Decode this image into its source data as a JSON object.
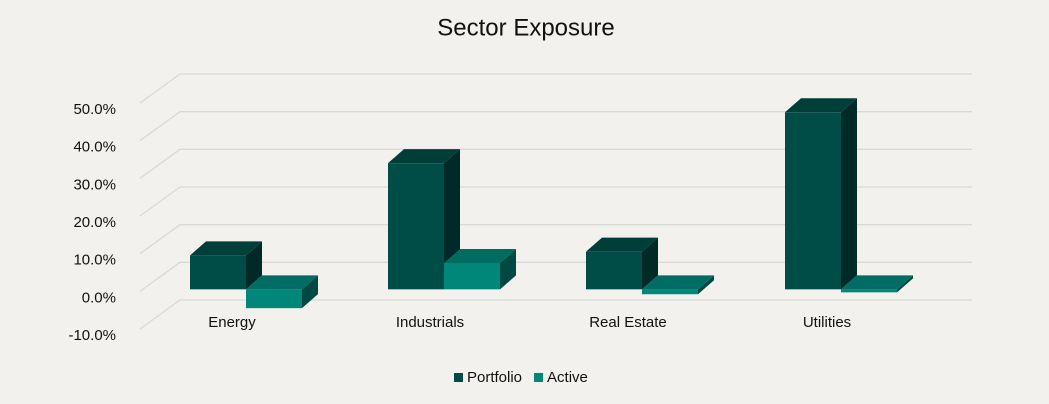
{
  "chart_data": {
    "type": "bar3d",
    "title": "Sector Exposure",
    "categories": [
      "Energy",
      "Industrials",
      "Real Estate",
      "Utilities"
    ],
    "series": [
      {
        "name": "Portfolio",
        "color": "#004d47",
        "values": [
          9.0,
          33.5,
          10.0,
          47.0
        ]
      },
      {
        "name": "Active",
        "color": "#00877a",
        "values": [
          -5.0,
          7.0,
          -1.3,
          -0.8
        ]
      }
    ],
    "ylim": [
      -10,
      50
    ],
    "yticks": [
      {
        "value": -10,
        "label": "-10.0%"
      },
      {
        "value": 0,
        "label": "0.0%"
      },
      {
        "value": 10,
        "label": "10.0%"
      },
      {
        "value": 20,
        "label": "20.0%"
      },
      {
        "value": 30,
        "label": "30.0%"
      },
      {
        "value": 40,
        "label": "40.0%"
      },
      {
        "value": 50,
        "label": "50.0%"
      }
    ],
    "grid": true,
    "legend": "bottom"
  }
}
